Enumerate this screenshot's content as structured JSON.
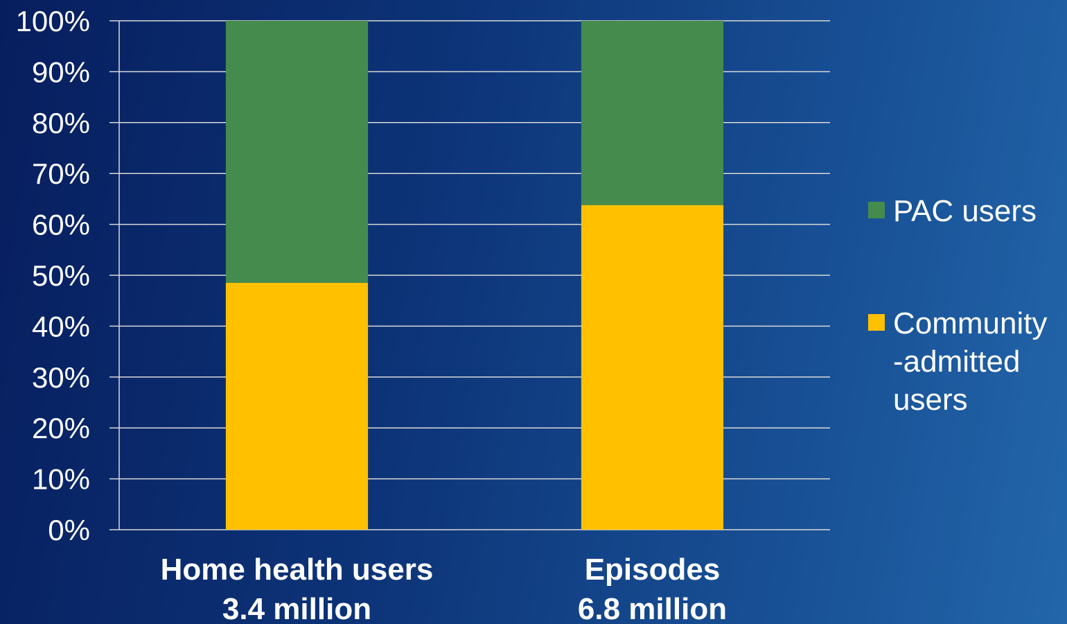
{
  "chart_data": {
    "type": "bar",
    "stacked": true,
    "categories": [
      [
        "Home health users",
        "3.4 million"
      ],
      [
        "Episodes",
        "6.8 million"
      ]
    ],
    "series": [
      {
        "name": "Community-admitted users",
        "legend_lines": [
          "Community",
          "-admitted",
          "users"
        ],
        "color": "#ffc000",
        "values": [
          48.5,
          63.8
        ]
      },
      {
        "name": "PAC users",
        "legend_lines": [
          "PAC users"
        ],
        "color": "#458b4e",
        "values": [
          51.5,
          36.2
        ]
      }
    ],
    "ylim": [
      0,
      100
    ],
    "yticks": [
      "0%",
      "10%",
      "20%",
      "30%",
      "40%",
      "50%",
      "60%",
      "70%",
      "80%",
      "90%",
      "100%"
    ],
    "grid": true,
    "legend_position": "right",
    "legend_order": [
      "PAC users",
      "Community-admitted users"
    ]
  }
}
